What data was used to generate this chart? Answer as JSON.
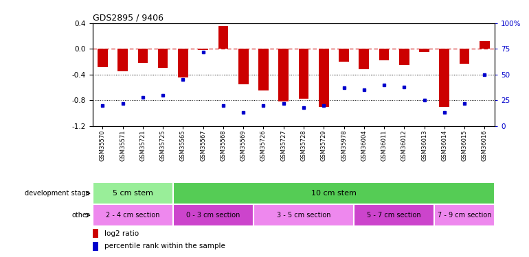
{
  "title": "GDS2895 / 9406",
  "samples": [
    "GSM35570",
    "GSM35571",
    "GSM35721",
    "GSM35725",
    "GSM35565",
    "GSM35567",
    "GSM35568",
    "GSM35569",
    "GSM35726",
    "GSM35727",
    "GSM35728",
    "GSM35729",
    "GSM35978",
    "GSM36004",
    "GSM36011",
    "GSM36012",
    "GSM36013",
    "GSM36014",
    "GSM36015",
    "GSM36016"
  ],
  "log2_ratio": [
    -0.28,
    -0.35,
    -0.22,
    -0.3,
    -0.45,
    -0.02,
    0.35,
    -0.55,
    -0.65,
    -0.82,
    -0.78,
    -0.9,
    -0.2,
    -0.32,
    -0.18,
    -0.25,
    -0.05,
    -0.9,
    -0.23,
    0.12
  ],
  "percentile": [
    20,
    22,
    28,
    30,
    45,
    72,
    20,
    13,
    20,
    22,
    18,
    20,
    37,
    35,
    40,
    38,
    25,
    13,
    22,
    50
  ],
  "ylim_left": [
    -1.2,
    0.4
  ],
  "ylim_right": [
    0,
    100
  ],
  "yticks_left": [
    -1.2,
    -0.8,
    -0.4,
    0.0,
    0.4
  ],
  "yticks_right": [
    0,
    25,
    50,
    75,
    100
  ],
  "ytick_labels_right": [
    "0",
    "25",
    "50",
    "75",
    "100%"
  ],
  "bar_color": "#cc0000",
  "dot_color": "#0000cc",
  "ref_line_color": "#cc0000",
  "hline_color": "#000000",
  "dev_stage_row": [
    {
      "label": "5 cm stem",
      "start": 0,
      "end": 4,
      "color": "#99ee99"
    },
    {
      "label": "10 cm stem",
      "start": 4,
      "end": 20,
      "color": "#55cc55"
    }
  ],
  "other_row": [
    {
      "label": "2 - 4 cm section",
      "start": 0,
      "end": 4,
      "color": "#ee88ee"
    },
    {
      "label": "0 - 3 cm section",
      "start": 4,
      "end": 8,
      "color": "#cc44cc"
    },
    {
      "label": "3 - 5 cm section",
      "start": 8,
      "end": 13,
      "color": "#ee88ee"
    },
    {
      "label": "5 - 7 cm section",
      "start": 13,
      "end": 17,
      "color": "#cc44cc"
    },
    {
      "label": "7 - 9 cm section",
      "start": 17,
      "end": 20,
      "color": "#ee88ee"
    }
  ],
  "background_color": "#ffffff",
  "dpi": 100,
  "figsize": [
    7.7,
    3.75
  ]
}
